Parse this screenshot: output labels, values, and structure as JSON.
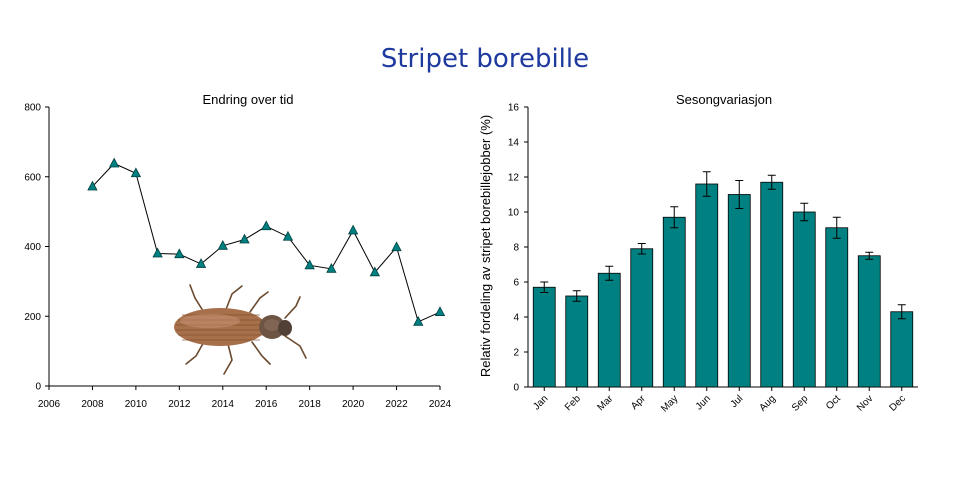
{
  "page": {
    "title": "Stripet borebille"
  },
  "colors": {
    "title": "#1f3a9e",
    "marker": "#008080",
    "bar": "#008080",
    "line": "#000000"
  },
  "chart_data": [
    {
      "type": "line",
      "title": "Endring over tid",
      "xlabel": "",
      "ylabel": "",
      "xlim": [
        2006,
        2024
      ],
      "ylim": [
        0,
        800
      ],
      "xticks": [
        "2006",
        "2008",
        "2010",
        "2012",
        "2014",
        "2016",
        "2018",
        "2020",
        "2022",
        "2024"
      ],
      "yticks": [
        "0",
        "200",
        "400",
        "600",
        "800"
      ],
      "x": [
        2008,
        2009,
        2010,
        2011,
        2012,
        2013,
        2014,
        2015,
        2016,
        2017,
        2018,
        2019,
        2020,
        2021,
        2022,
        2023,
        2024
      ],
      "y": [
        572,
        638,
        610,
        380,
        378,
        350,
        402,
        420,
        458,
        428,
        346,
        336,
        446,
        326,
        398,
        184,
        212
      ],
      "marker": "triangle",
      "image": "beetle"
    },
    {
      "type": "bar",
      "title": "Sesongvariasjon",
      "xlabel": "",
      "ylabel": "Relativ fordeling av stripet borebillejobber (%)",
      "ylim": [
        0,
        16
      ],
      "yticks": [
        "0",
        "2",
        "4",
        "6",
        "8",
        "10",
        "12",
        "14",
        "16"
      ],
      "categories": [
        "Jan",
        "Feb",
        "Mar",
        "Apr",
        "May",
        "Jun",
        "Jul",
        "Aug",
        "Sep",
        "Oct",
        "Nov",
        "Dec"
      ],
      "values": [
        5.7,
        5.2,
        6.5,
        7.9,
        9.7,
        11.6,
        11.0,
        11.7,
        10.0,
        9.1,
        7.5,
        4.3
      ],
      "errors": [
        0.3,
        0.3,
        0.4,
        0.3,
        0.6,
        0.7,
        0.8,
        0.4,
        0.5,
        0.6,
        0.2,
        0.4
      ]
    }
  ]
}
